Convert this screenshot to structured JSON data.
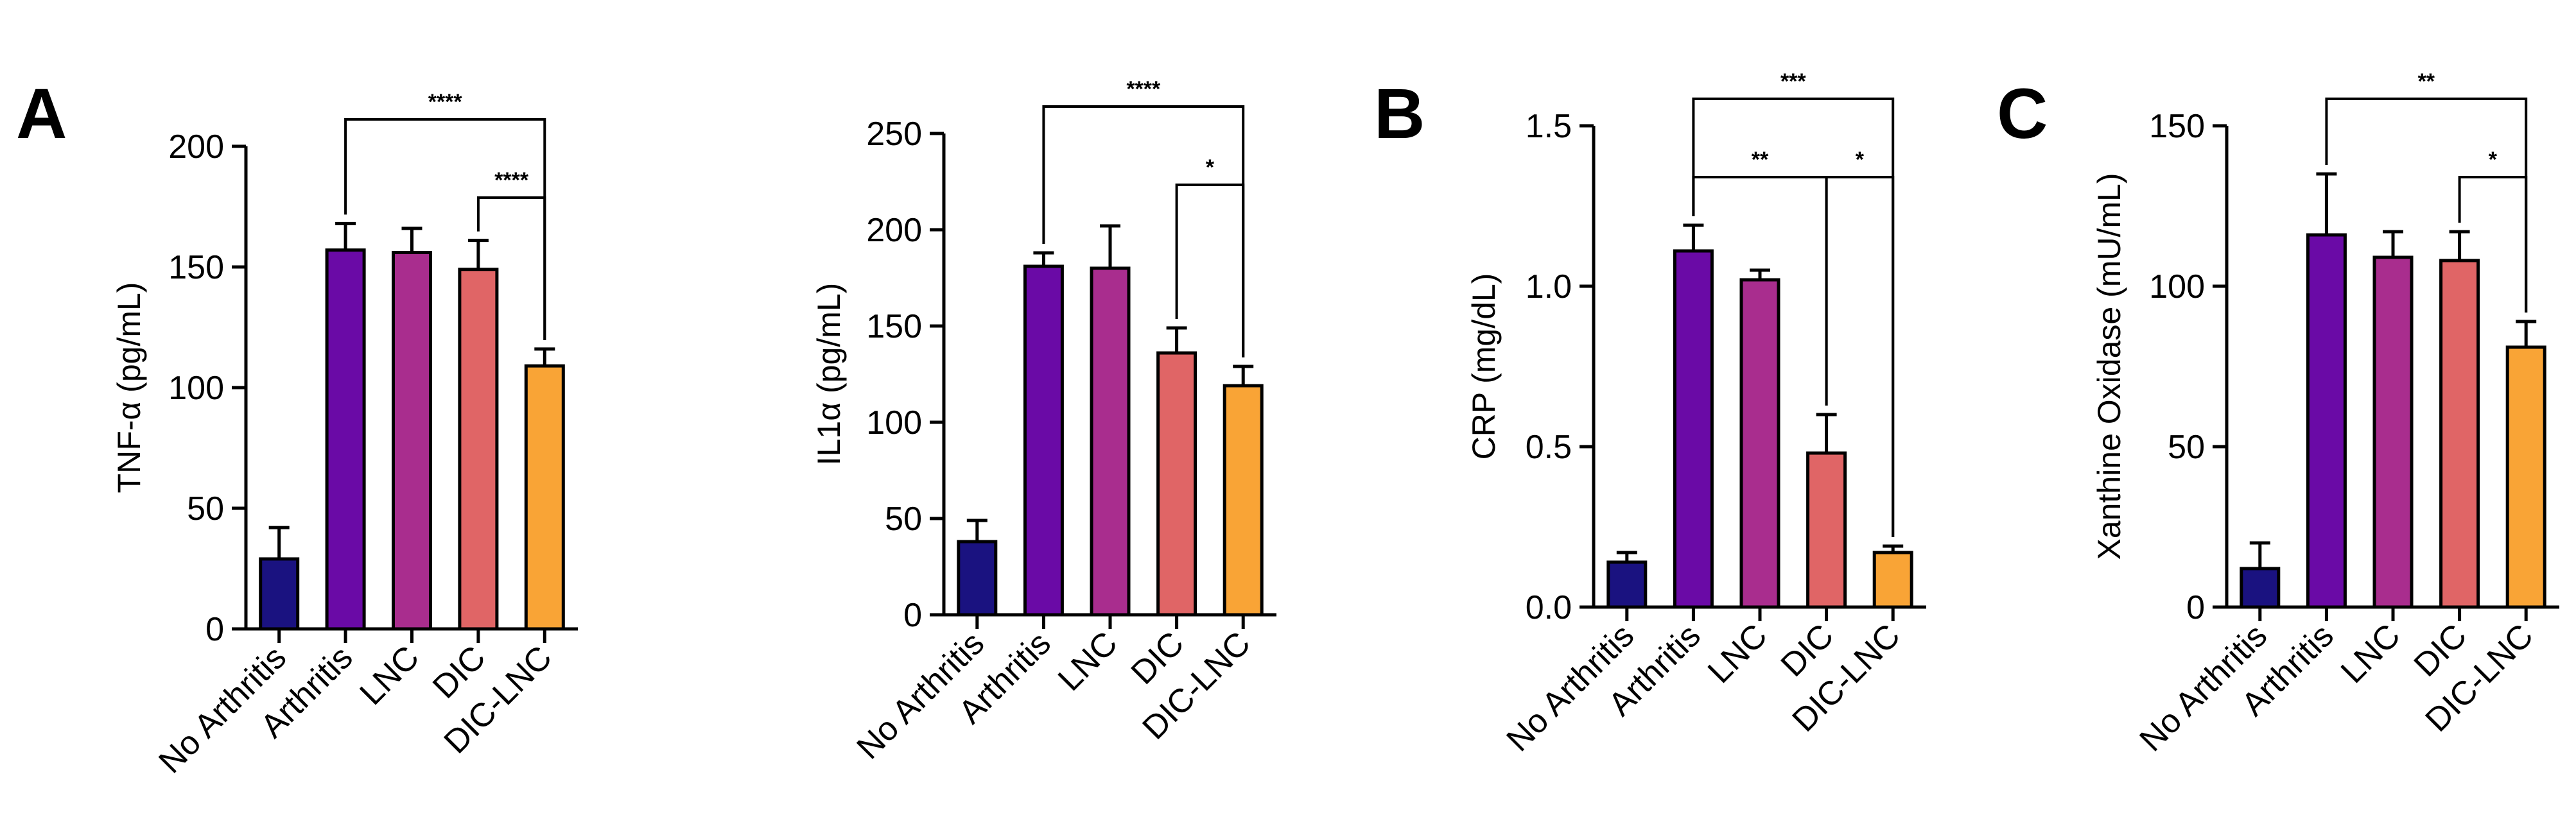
{
  "chart_data": [
    {
      "type": "bar",
      "panel_letter": "A",
      "ylabel": "TNF-α (pg/mL)",
      "ylim": [
        0,
        200
      ],
      "yticks": [
        0,
        50,
        100,
        150,
        200
      ],
      "categories": [
        "No Arthritis",
        "Arthritis",
        "LNC",
        "DIC",
        "DIC-LNC"
      ],
      "values": [
        29,
        157,
        156,
        149,
        109
      ],
      "errors": [
        13,
        11,
        10,
        12,
        7
      ],
      "colors": [
        "#1a1280",
        "#6a0aa6",
        "#a92d8e",
        "#e06566",
        "#f9a436"
      ],
      "significance": [
        {
          "from": 1,
          "to": 4,
          "label": "****",
          "tier": 0
        },
        {
          "from": 3,
          "to": 4,
          "label": "****",
          "tier": 1
        }
      ]
    },
    {
      "type": "bar",
      "panel_letter": "",
      "ylabel": "IL1α (pg/mL)",
      "ylim": [
        0,
        250
      ],
      "yticks": [
        0,
        50,
        100,
        150,
        200,
        250
      ],
      "categories": [
        "No Arthritis",
        "Arthritis",
        "LNC",
        "DIC",
        "DIC-LNC"
      ],
      "values": [
        38,
        181,
        180,
        136,
        119
      ],
      "errors": [
        11,
        7,
        22,
        13,
        10
      ],
      "colors": [
        "#1a1280",
        "#6a0aa6",
        "#a92d8e",
        "#e06566",
        "#f9a436"
      ],
      "significance": [
        {
          "from": 1,
          "to": 4,
          "label": "****",
          "tier": 0
        },
        {
          "from": 3,
          "to": 4,
          "label": "*",
          "tier": 1
        }
      ]
    },
    {
      "type": "bar",
      "panel_letter": "B",
      "ylabel": "CRP (mg/dL)",
      "ylim": [
        0,
        1.5
      ],
      "yticks": [
        0.0,
        0.5,
        1.0,
        1.5
      ],
      "tick_decimals": 1,
      "categories": [
        "No Arthritis",
        "Arthritis",
        "LNC",
        "DIC",
        "DIC-LNC"
      ],
      "values": [
        0.14,
        1.11,
        1.02,
        0.48,
        0.17
      ],
      "errors": [
        0.03,
        0.08,
        0.03,
        0.12,
        0.02
      ],
      "colors": [
        "#1a1280",
        "#6a0aa6",
        "#a92d8e",
        "#e06566",
        "#f9a436"
      ],
      "significance": [
        {
          "from": 1,
          "to": 4,
          "label": "***",
          "tier": 0
        },
        {
          "from": 1,
          "to": 3,
          "label": "**",
          "tier": 1
        },
        {
          "from": 3,
          "to": 4,
          "label": "*",
          "tier": 1
        }
      ]
    },
    {
      "type": "bar",
      "panel_letter": "C",
      "ylabel": "Xanthine Oxidase (mU/mL)",
      "ylim": [
        0,
        150
      ],
      "yticks": [
        0,
        50,
        100,
        150
      ],
      "categories": [
        "No Arthritis",
        "Arthritis",
        "LNC",
        "DIC",
        "DIC-LNC"
      ],
      "values": [
        12,
        116,
        109,
        108,
        81
      ],
      "errors": [
        8,
        19,
        8,
        9,
        8
      ],
      "colors": [
        "#1a1280",
        "#6a0aa6",
        "#a92d8e",
        "#e06566",
        "#f9a436"
      ],
      "significance": [
        {
          "from": 1,
          "to": 4,
          "label": "**",
          "tier": 0
        },
        {
          "from": 3,
          "to": 4,
          "label": "*",
          "tier": 1
        }
      ]
    }
  ]
}
